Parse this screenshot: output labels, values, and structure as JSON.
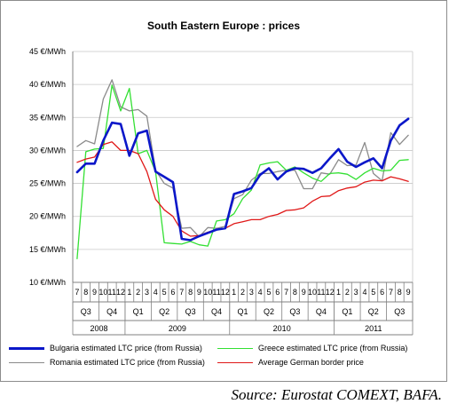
{
  "chart_data": {
    "type": "line",
    "title": "South Eastern Europe : prices",
    "ylim": [
      10,
      45
    ],
    "yticks": [
      10,
      15,
      20,
      25,
      30,
      35,
      40,
      45
    ],
    "ytick_labels": [
      "10 €/MWh",
      "15 €/MWh",
      "20 €/MWh",
      "25 €/MWh",
      "30 €/MWh",
      "35 €/MWh",
      "40 €/MWh",
      "45 €/MWh"
    ],
    "months": [
      "7",
      "8",
      "9",
      "10",
      "11",
      "12",
      "1",
      "2",
      "3",
      "4",
      "5",
      "6",
      "7",
      "8",
      "9",
      "10",
      "11",
      "12",
      "1",
      "2",
      "3",
      "4",
      "5",
      "6",
      "7",
      "8",
      "9",
      "10",
      "11",
      "12",
      "1",
      "2",
      "3",
      "4",
      "5",
      "6",
      "7",
      "8",
      "9"
    ],
    "quarters": [
      {
        "label": "Q3",
        "months": 3
      },
      {
        "label": "Q4",
        "months": 3
      },
      {
        "label": "Q1",
        "months": 3
      },
      {
        "label": "Q2",
        "months": 3
      },
      {
        "label": "Q3",
        "months": 3
      },
      {
        "label": "Q4",
        "months": 3
      },
      {
        "label": "Q1",
        "months": 3
      },
      {
        "label": "Q2",
        "months": 3
      },
      {
        "label": "Q3",
        "months": 3
      },
      {
        "label": "Q4",
        "months": 3
      },
      {
        "label": "Q1",
        "months": 3
      },
      {
        "label": "Q2",
        "months": 3
      },
      {
        "label": "Q3",
        "months": 3
      }
    ],
    "years": [
      {
        "label": "2008",
        "months": 6
      },
      {
        "label": "2009",
        "months": 12
      },
      {
        "label": "2010",
        "months": 12
      },
      {
        "label": "2011",
        "months": 9
      }
    ],
    "grid": true,
    "legend_position": "bottom",
    "series": [
      {
        "name": "Bulgaria estimated LTC price (from Russia)",
        "color": "#0b17c9",
        "width": 2.6,
        "values": [
          26.7,
          28.0,
          28.0,
          31.5,
          34.2,
          34.0,
          29.2,
          32.6,
          33.0,
          26.8,
          26.0,
          25.2,
          16.6,
          16.4,
          17.0,
          17.5,
          18.0,
          18.2,
          23.4,
          23.8,
          24.3,
          26.3,
          27.3,
          25.6,
          26.8,
          27.3,
          27.2,
          26.6,
          27.3,
          28.8,
          30.2,
          28.3,
          27.5,
          28.2,
          28.8,
          27.3,
          31.5,
          33.8,
          34.8
        ]
      },
      {
        "name": "Greece estimated LTC price (from Russia)",
        "color": "#33e033",
        "width": 1.3,
        "values": [
          13.6,
          29.8,
          30.2,
          30.3,
          39.9,
          36.0,
          39.4,
          29.5,
          30.0,
          26.8,
          16.0,
          15.9,
          15.8,
          16.2,
          15.7,
          15.5,
          19.3,
          19.5,
          20.4,
          22.7,
          24.0,
          27.8,
          28.1,
          28.3,
          27.0,
          27.5,
          26.6,
          25.8,
          25.3,
          26.5,
          26.6,
          26.4,
          25.6,
          26.6,
          27.3,
          26.9,
          27.0,
          28.5,
          28.6
        ]
      },
      {
        "name": "Romania estimated LTC price (from Russia)",
        "color": "#8a8a8a",
        "width": 1.3,
        "values": [
          30.6,
          31.5,
          31.0,
          37.8,
          40.7,
          36.6,
          36.0,
          36.2,
          35.2,
          27.0,
          25.0,
          24.3,
          18.2,
          18.3,
          16.9,
          18.3,
          18.2,
          18.5,
          22.7,
          23.3,
          25.5,
          26.5,
          26.5,
          26.8,
          27.0,
          27.0,
          24.2,
          24.2,
          26.6,
          26.4,
          28.6,
          27.7,
          27.8,
          31.2,
          26.5,
          25.4,
          32.7,
          30.9,
          32.3
        ]
      },
      {
        "name": "Average German border price",
        "color": "#e01818",
        "width": 1.3,
        "values": [
          28.2,
          28.7,
          29.0,
          30.9,
          31.3,
          30.0,
          30.0,
          29.5,
          26.8,
          22.6,
          21.0,
          20.0,
          17.8,
          17.0,
          17.1,
          17.6,
          18.0,
          18.2,
          18.9,
          19.2,
          19.5,
          19.5,
          20.0,
          20.3,
          20.9,
          21.0,
          21.3,
          22.3,
          23.0,
          23.1,
          23.9,
          24.3,
          24.5,
          25.2,
          25.5,
          25.4,
          26.0,
          25.7,
          25.3
        ]
      }
    ]
  },
  "source_note": "Source: Eurostat COMEXT, BAFA."
}
